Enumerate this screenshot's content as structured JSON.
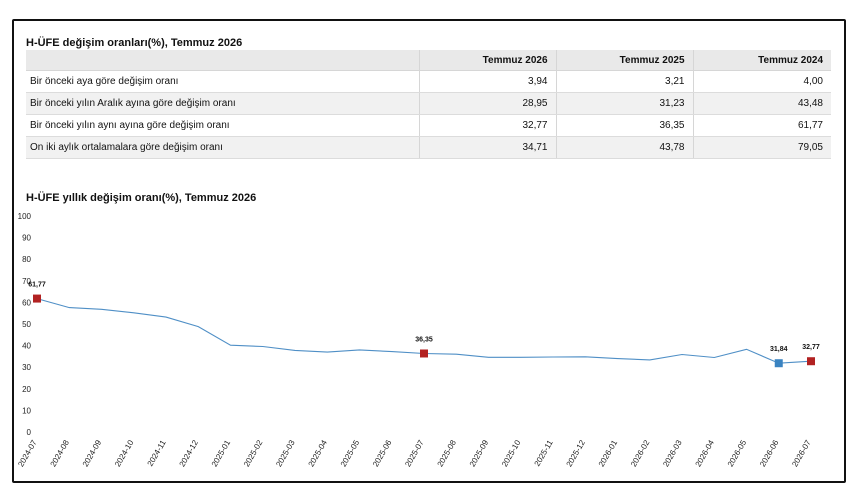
{
  "table": {
    "title": "H-ÜFE değişim oranları(%), Temmuz 2026",
    "headers": [
      "",
      "Temmuz 2026",
      "Temmuz 2025",
      "Temmuz 2024"
    ],
    "rows": [
      {
        "label": "Bir önceki aya göre değişim oranı",
        "values": [
          "3,94",
          "3,21",
          "4,00"
        ]
      },
      {
        "label": "Bir önceki yılın Aralık ayına göre değişim oranı",
        "values": [
          "28,95",
          "31,23",
          "43,48"
        ]
      },
      {
        "label": "Bir önceki yılın aynı ayına göre değişim oranı",
        "values": [
          "32,77",
          "36,35",
          "61,77"
        ]
      },
      {
        "label": "On iki aylık ortalamalara göre değişim oranı",
        "values": [
          "34,71",
          "43,78",
          "79,05"
        ]
      }
    ]
  },
  "chart_data": {
    "type": "line",
    "title": "H-ÜFE yıllık değişim oranı(%), Temmuz 2026",
    "xlabel": "",
    "ylabel": "",
    "ylim": [
      0,
      100
    ],
    "yticks": [
      0,
      10,
      20,
      30,
      40,
      50,
      60,
      70,
      80,
      90,
      100
    ],
    "grid": false,
    "x": [
      "2024-07",
      "2024-08",
      "2024-09",
      "2024-10",
      "2024-11",
      "2024-12",
      "2025-01",
      "2025-02",
      "2025-03",
      "2025-04",
      "2025-05",
      "2025-06",
      "2025-07",
      "2025-08",
      "2025-09",
      "2025-10",
      "2025-11",
      "2025-12",
      "2026-01",
      "2026-02",
      "2026-03",
      "2026-04",
      "2026-05",
      "2026-06",
      "2026-07"
    ],
    "series": [
      {
        "values": [
          61.77,
          57.6,
          56.8,
          55.2,
          53.2,
          48.8,
          40.2,
          39.6,
          37.8,
          37.0,
          38.0,
          37.2,
          36.35,
          36.0,
          34.6,
          34.6,
          34.7,
          34.8,
          34.0,
          33.4,
          35.9,
          34.5,
          38.3,
          31.84,
          32.77
        ],
        "color": "#4f8fc6"
      }
    ],
    "markers": [
      {
        "index": 0,
        "label": "61,77",
        "color": "#b22222"
      },
      {
        "index": 12,
        "label": "36,35",
        "color": "#b22222"
      },
      {
        "index": 23,
        "label": "31,84",
        "color": "#3a83c1"
      },
      {
        "index": 24,
        "label": "32,77",
        "color": "#b22222"
      }
    ]
  }
}
